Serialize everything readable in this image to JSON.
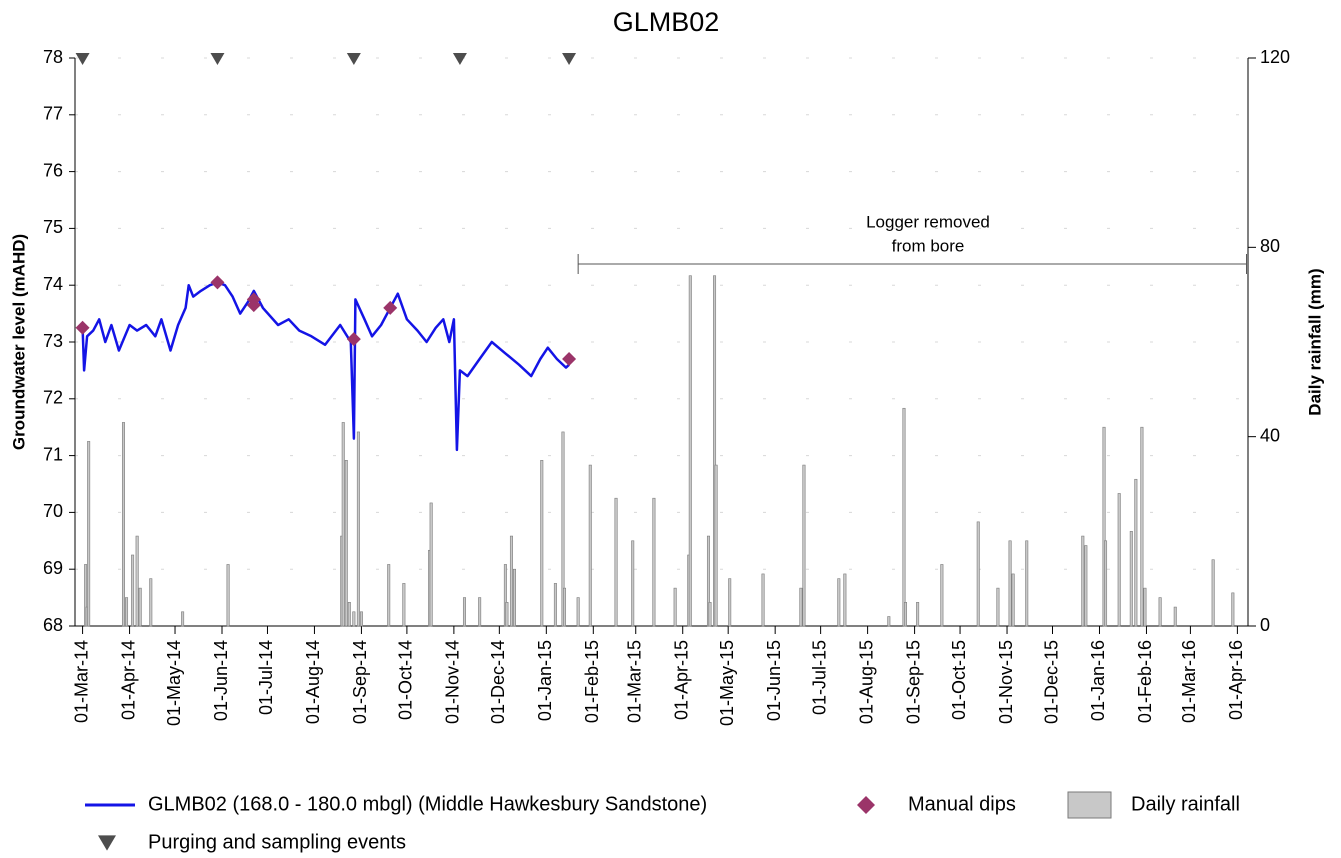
{
  "chart_data": {
    "type": "combo",
    "title": "GLMB02",
    "y_label": "Groundwater level (mAHD)",
    "y2_label": "Daily rainfall (mm)",
    "xlim": [
      "2014-02-24",
      "2016-04-08"
    ],
    "ylim": [
      68,
      78
    ],
    "yticks": [
      68,
      69,
      70,
      71,
      72,
      73,
      74,
      75,
      76,
      77,
      78
    ],
    "y2lim": [
      0,
      120
    ],
    "y2ticks": [
      0,
      40,
      80,
      120
    ],
    "grid": true,
    "xticks": [
      {
        "value": "2014-03-01",
        "label": "01-Mar-14"
      },
      {
        "value": "2014-04-01",
        "label": "01-Apr-14"
      },
      {
        "value": "2014-05-01",
        "label": "01-May-14"
      },
      {
        "value": "2014-06-01",
        "label": "01-Jun-14"
      },
      {
        "value": "2014-07-01",
        "label": "01-Jul-14"
      },
      {
        "value": "2014-08-01",
        "label": "01-Aug-14"
      },
      {
        "value": "2014-09-01",
        "label": "01-Sep-14"
      },
      {
        "value": "2014-10-01",
        "label": "01-Oct-14"
      },
      {
        "value": "2014-11-01",
        "label": "01-Nov-14"
      },
      {
        "value": "2014-12-01",
        "label": "01-Dec-14"
      },
      {
        "value": "2015-01-01",
        "label": "01-Jan-15"
      },
      {
        "value": "2015-02-01",
        "label": "01-Feb-15"
      },
      {
        "value": "2015-03-01",
        "label": "01-Mar-15"
      },
      {
        "value": "2015-04-01",
        "label": "01-Apr-15"
      },
      {
        "value": "2015-05-01",
        "label": "01-May-15"
      },
      {
        "value": "2015-06-01",
        "label": "01-Jun-15"
      },
      {
        "value": "2015-07-01",
        "label": "01-Jul-15"
      },
      {
        "value": "2015-08-01",
        "label": "01-Aug-15"
      },
      {
        "value": "2015-09-01",
        "label": "01-Sep-15"
      },
      {
        "value": "2015-10-01",
        "label": "01-Oct-15"
      },
      {
        "value": "2015-11-01",
        "label": "01-Nov-15"
      },
      {
        "value": "2015-12-01",
        "label": "01-Dec-15"
      },
      {
        "value": "2016-01-01",
        "label": "01-Jan-16"
      },
      {
        "value": "2016-02-01",
        "label": "01-Feb-16"
      },
      {
        "value": "2016-03-01",
        "label": "01-Mar-16"
      },
      {
        "value": "2016-04-01",
        "label": "01-Apr-16"
      }
    ],
    "annotation": {
      "lines": [
        "Logger removed",
        "from bore"
      ],
      "x": [
        "2015-01-22",
        "2016-04-07"
      ]
    },
    "series": [
      {
        "name": "Daily rainfall",
        "type": "bar",
        "axis": "y2",
        "color": "#c8c8c8",
        "x": [
          "2014-03-03",
          "2014-03-04",
          "2014-03-05",
          "2014-03-28",
          "2014-03-30",
          "2014-04-03",
          "2014-04-06",
          "2014-04-08",
          "2014-04-15",
          "2014-05-06",
          "2014-06-05",
          "2014-08-19",
          "2014-08-20",
          "2014-08-22",
          "2014-08-24",
          "2014-08-27",
          "2014-08-30",
          "2014-09-01",
          "2014-09-19",
          "2014-09-29",
          "2014-10-16",
          "2014-10-17",
          "2014-11-08",
          "2014-11-18",
          "2014-12-05",
          "2014-12-06",
          "2014-12-09",
          "2014-12-11",
          "2014-12-29",
          "2015-01-07",
          "2015-01-12",
          "2015-01-13",
          "2015-01-22",
          "2015-01-30",
          "2015-02-16",
          "2015-02-27",
          "2015-03-13",
          "2015-03-27",
          "2015-04-05",
          "2015-04-06",
          "2015-04-18",
          "2015-04-19",
          "2015-04-22",
          "2015-04-23",
          "2015-05-02",
          "2015-05-24",
          "2015-06-18",
          "2015-06-20",
          "2015-07-13",
          "2015-07-17",
          "2015-08-15",
          "2015-08-25",
          "2015-08-26",
          "2015-09-03",
          "2015-09-19",
          "2015-10-13",
          "2015-10-26",
          "2015-11-03",
          "2015-11-05",
          "2015-11-14",
          "2015-12-21",
          "2015-12-23",
          "2016-01-04",
          "2016-01-05",
          "2016-01-14",
          "2016-01-22",
          "2016-01-25",
          "2016-01-29",
          "2016-01-31",
          "2016-02-10",
          "2016-02-20",
          "2016-03-16",
          "2016-03-29"
        ],
        "values": [
          13,
          4,
          39,
          43,
          6,
          15,
          19,
          8,
          10,
          3,
          13,
          19,
          43,
          35,
          5,
          3,
          41,
          3,
          13,
          9,
          16,
          26,
          6,
          6,
          13,
          5,
          19,
          12,
          35,
          9,
          41,
          8,
          6,
          34,
          27,
          18,
          27,
          8,
          15,
          74,
          19,
          5,
          74,
          34,
          10,
          11,
          8,
          34,
          10,
          11,
          2,
          46,
          5,
          5,
          13,
          22,
          8,
          18,
          11,
          18,
          19,
          17,
          42,
          18,
          28,
          20,
          31,
          42,
          8,
          6,
          4,
          14,
          7
        ]
      },
      {
        "name": "GLMB02 (168.0 - 180.0 mbgl) (Middle Hawkesbury Sandstone)",
        "type": "line",
        "color": "#1414e6",
        "x": [
          "2014-03-01",
          "2014-03-02",
          "2014-03-04",
          "2014-03-08",
          "2014-03-12",
          "2014-03-16",
          "2014-03-20",
          "2014-03-25",
          "2014-04-01",
          "2014-04-06",
          "2014-04-12",
          "2014-04-18",
          "2014-04-22",
          "2014-04-28",
          "2014-05-03",
          "2014-05-08",
          "2014-05-10",
          "2014-05-13",
          "2014-05-18",
          "2014-05-24",
          "2014-05-29",
          "2014-06-03",
          "2014-06-08",
          "2014-06-13",
          "2014-06-18",
          "2014-06-22",
          "2014-06-28",
          "2014-07-08",
          "2014-07-15",
          "2014-07-22",
          "2014-07-30",
          "2014-08-08",
          "2014-08-18",
          "2014-08-25",
          "2014-08-27",
          "2014-08-28",
          "2014-09-03",
          "2014-09-08",
          "2014-09-14",
          "2014-09-20",
          "2014-09-25",
          "2014-10-01",
          "2014-10-08",
          "2014-10-14",
          "2014-10-20",
          "2014-10-25",
          "2014-10-29",
          "2014-11-01",
          "2014-11-03",
          "2014-11-05",
          "2014-11-10",
          "2014-11-18",
          "2014-11-26",
          "2014-12-05",
          "2014-12-14",
          "2014-12-22",
          "2014-12-28",
          "2015-01-02",
          "2015-01-08",
          "2015-01-14",
          "2015-01-16"
        ],
        "values": [
          73.25,
          72.5,
          73.1,
          73.2,
          73.4,
          73.0,
          73.3,
          72.85,
          73.3,
          73.2,
          73.3,
          73.1,
          73.4,
          72.85,
          73.3,
          73.6,
          74.0,
          73.8,
          73.9,
          74.0,
          74.05,
          74.0,
          73.8,
          73.5,
          73.7,
          73.9,
          73.6,
          73.3,
          73.4,
          73.2,
          73.1,
          72.95,
          73.3,
          73.0,
          71.3,
          73.75,
          73.4,
          73.1,
          73.3,
          73.6,
          73.85,
          73.4,
          73.2,
          73.0,
          73.25,
          73.4,
          73.0,
          73.4,
          71.1,
          72.5,
          72.4,
          72.7,
          73.0,
          72.8,
          72.6,
          72.4,
          72.7,
          72.9,
          72.7,
          72.55,
          72.6
        ]
      },
      {
        "name": "Manual dips",
        "type": "scatter",
        "color": "#9b3469",
        "x": [
          "2014-03-01",
          "2014-05-29",
          "2014-06-22",
          "2014-06-22",
          "2014-08-27",
          "2014-09-20",
          "2015-01-16"
        ],
        "values": [
          73.25,
          74.05,
          73.75,
          73.65,
          73.05,
          73.6,
          72.7
        ]
      },
      {
        "name": "Purging and sampling events",
        "type": "event",
        "color": "#4d4d4d",
        "x": [
          "2014-03-01",
          "2014-05-29",
          "2014-08-27",
          "2014-11-05",
          "2015-01-16"
        ]
      }
    ]
  }
}
